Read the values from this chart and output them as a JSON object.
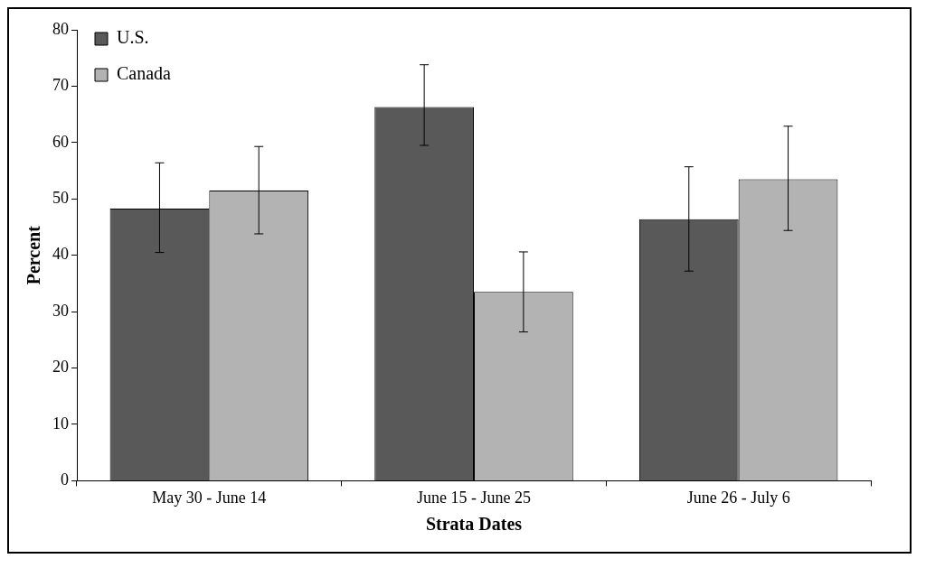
{
  "chart_data": {
    "type": "bar",
    "xlabel": "Strata Dates",
    "ylabel": "Percent",
    "categories": [
      "May 30 - June 14",
      "June 15 - June 25",
      "June 26 - July 6"
    ],
    "series": [
      {
        "name": "U.S.",
        "color": "#595959",
        "values": [
          48.3,
          66.3,
          46.4
        ],
        "errors": [
          [
            40.5,
            56.4
          ],
          [
            59.5,
            73.8
          ],
          [
            37.2,
            55.7
          ]
        ]
      },
      {
        "name": "Canada",
        "color": "#b3b3b3",
        "values": [
          51.5,
          33.5,
          53.5
        ],
        "errors": [
          [
            43.8,
            59.3
          ],
          [
            26.4,
            40.6
          ],
          [
            44.4,
            62.9
          ]
        ]
      }
    ],
    "ylim": [
      0,
      80
    ],
    "yticks": [
      0,
      10,
      20,
      30,
      40,
      50,
      60,
      70,
      80
    ],
    "grid": false,
    "legend": "top left"
  }
}
